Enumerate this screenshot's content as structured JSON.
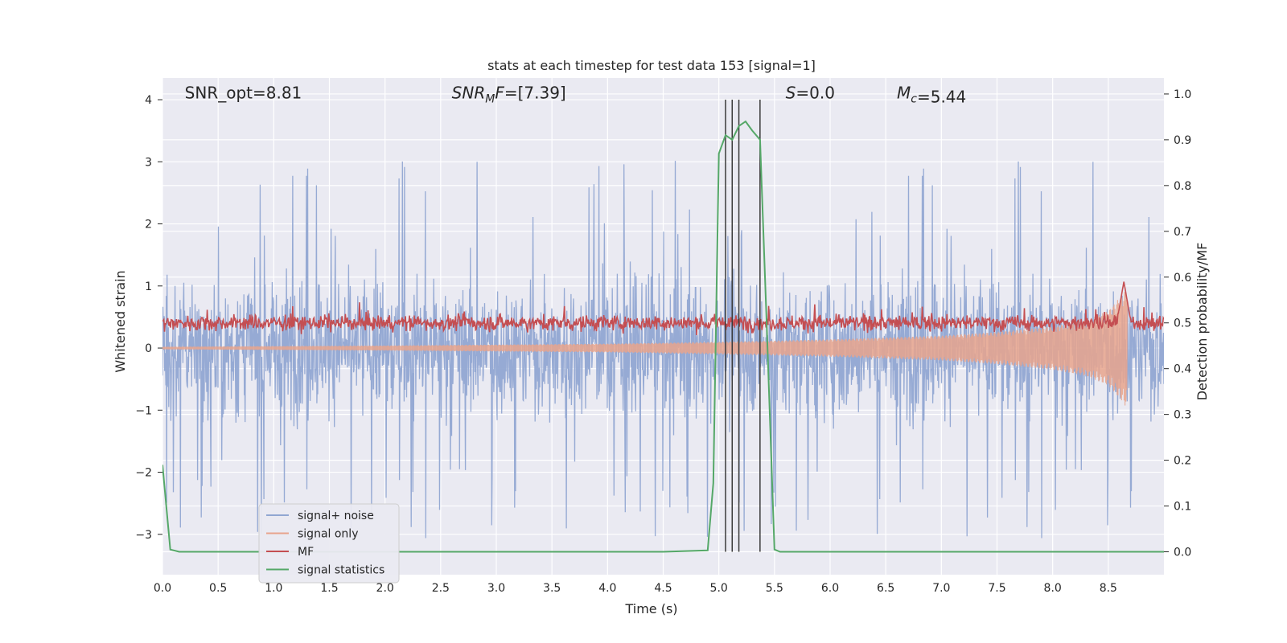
{
  "chart_data": {
    "type": "line",
    "title": "stats at each timestep for test data 153 [signal=1]",
    "xlabel": "Time (s)",
    "ylabel": "Whitened strain",
    "y2label": "Detection probability/MF",
    "xlim": [
      0,
      9.0
    ],
    "ylim": [
      -3.65,
      4.35
    ],
    "y2lim": [
      -0.05,
      1.035
    ],
    "x_ticks": [
      0.0,
      0.5,
      1.0,
      1.5,
      2.0,
      2.5,
      3.0,
      3.5,
      4.0,
      4.5,
      5.0,
      5.5,
      6.0,
      6.5,
      7.0,
      7.5,
      8.0,
      8.5
    ],
    "x_tick_labels": [
      "0.0",
      "0.5",
      "1.0",
      "1.5",
      "2.0",
      "2.5",
      "3.0",
      "3.5",
      "4.0",
      "4.5",
      "5.0",
      "5.5",
      "6.0",
      "6.5",
      "7.0",
      "7.5",
      "8.0",
      "8.5"
    ],
    "y_ticks": [
      -3,
      -2,
      -1,
      0,
      1,
      2,
      3,
      4
    ],
    "y_tick_labels": [
      "−3",
      "−2",
      "−1",
      "0",
      "1",
      "2",
      "3",
      "4"
    ],
    "y2_ticks": [
      0.0,
      0.1,
      0.2,
      0.3,
      0.4,
      0.5,
      0.6,
      0.7,
      0.8,
      0.9,
      1.0
    ],
    "y2_tick_labels": [
      "0.0",
      "0.1",
      "0.2",
      "0.3",
      "0.4",
      "0.5",
      "0.6",
      "0.7",
      "0.8",
      "0.9",
      "1.0"
    ],
    "grid": true,
    "legend_position": "lower-left",
    "annotations": [
      {
        "text": "SNR_opt=8.81",
        "x": 0.2,
        "y": 4.1
      },
      {
        "text": "SNR_MF=[7.39]",
        "x": 2.6,
        "y": 4.1,
        "math_sub": "M"
      },
      {
        "text": "S=0.0",
        "x": 5.6,
        "y": 4.1
      },
      {
        "text": "M_c=5.44",
        "x": 6.6,
        "y": 4.1,
        "math_sub": "c"
      }
    ],
    "vertical_lines_x": [
      5.06,
      5.12,
      5.18,
      5.37
    ],
    "series": [
      {
        "name": "signal+ noise",
        "color": "#91a7d2",
        "kind": "noise",
        "y_axis": "left",
        "envelope": {
          "typical_min": -1.8,
          "typical_max": 1.8,
          "peak_max": 4.0,
          "peak_min": -3.35
        }
      },
      {
        "name": "signal only",
        "color": "#e8a48d",
        "kind": "chirp",
        "y_axis": "left",
        "chirp_points": [
          [
            0.0,
            0.02
          ],
          [
            2.0,
            0.04
          ],
          [
            4.0,
            0.07
          ],
          [
            5.0,
            0.1
          ],
          [
            6.0,
            0.14
          ],
          [
            7.0,
            0.2
          ],
          [
            7.5,
            0.26
          ],
          [
            8.0,
            0.35
          ],
          [
            8.3,
            0.45
          ],
          [
            8.5,
            0.6
          ],
          [
            8.62,
            0.85
          ],
          [
            8.66,
            0.95
          ]
        ],
        "x_end": 8.67
      },
      {
        "name": "MF",
        "color": "#c44e52",
        "kind": "mf",
        "y_axis": "right",
        "baseline": 0.5,
        "spread": 0.02,
        "peak": {
          "x": 8.64,
          "y": 0.59
        }
      },
      {
        "name": "signal statistics",
        "color": "#55a868",
        "kind": "line",
        "y_axis": "right",
        "x": [
          0.0,
          0.07,
          0.15,
          0.5,
          1.0,
          2.0,
          3.0,
          4.0,
          4.5,
          4.9,
          4.95,
          5.0,
          5.06,
          5.12,
          5.18,
          5.24,
          5.3,
          5.37,
          5.43,
          5.5,
          5.55,
          5.6,
          6.0,
          7.0,
          8.0,
          9.0
        ],
        "values": [
          0.19,
          0.005,
          0.0,
          0.0,
          0.0,
          0.0,
          0.0,
          0.0,
          0.0,
          0.003,
          0.15,
          0.87,
          0.91,
          0.9,
          0.93,
          0.94,
          0.92,
          0.9,
          0.5,
          0.005,
          0.0,
          0.0,
          0.0,
          0.0,
          0.0,
          0.0
        ]
      }
    ]
  }
}
